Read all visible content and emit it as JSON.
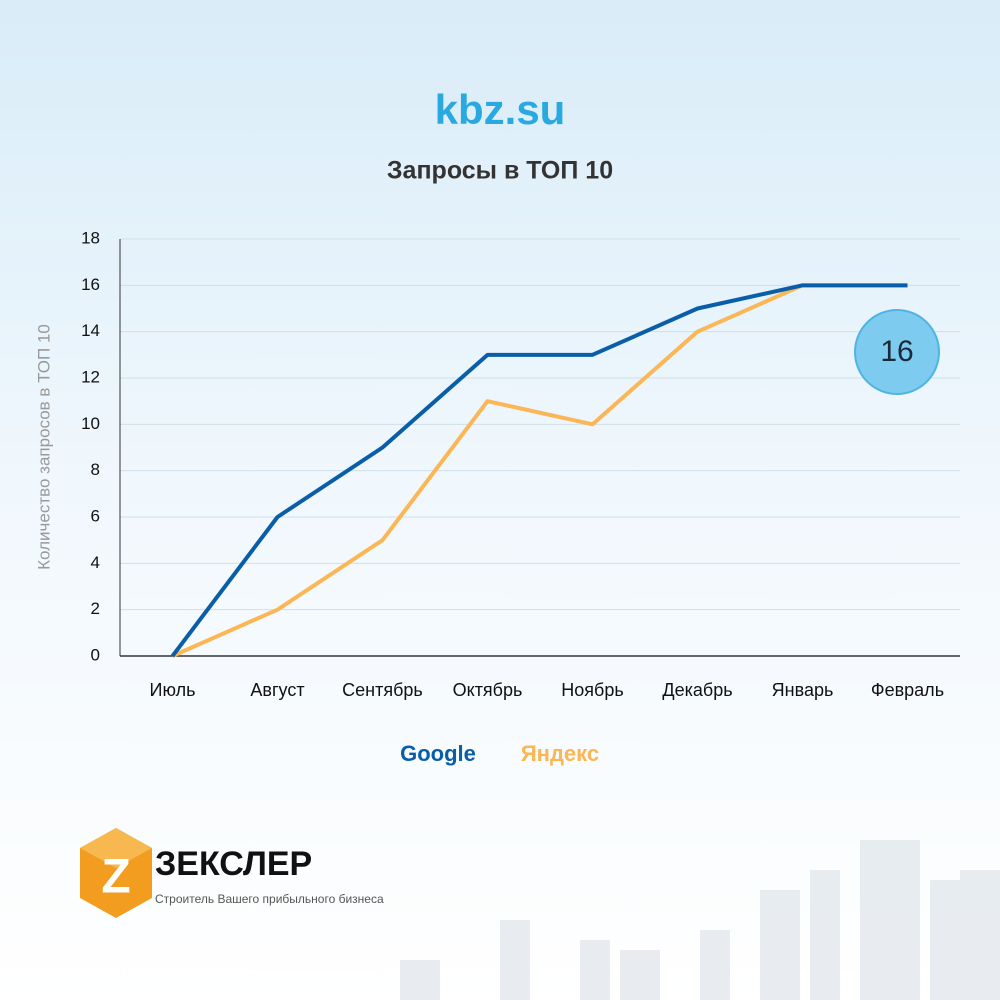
{
  "chart_data": {
    "type": "line",
    "title": "kbz.su",
    "subtitle": "Запросы в ТОП 10",
    "y_label": "Количество запросов в ТОП 10",
    "categories": [
      "Июль",
      "Август",
      "Сентябрь",
      "Октябрь",
      "Ноябрь",
      "Декабрь",
      "Январь",
      "Февраль"
    ],
    "series": [
      {
        "name": "Google",
        "color": "#0a5ea8",
        "values": [
          0,
          6,
          9,
          13,
          13,
          15,
          16,
          16
        ]
      },
      {
        "name": "Яндекс",
        "color": "#fbb655",
        "values": [
          0,
          2,
          5,
          11,
          10,
          14,
          16,
          16
        ]
      }
    ],
    "ylim": [
      0,
      18
    ],
    "yticks": [
      0,
      2,
      4,
      6,
      8,
      10,
      12,
      14,
      16,
      18
    ],
    "grid": true,
    "annotation": "16"
  },
  "logo": {
    "name": "ЗЕКСЛЕР",
    "tagline": "Строитель Вашего прибыльного бизнеса"
  }
}
